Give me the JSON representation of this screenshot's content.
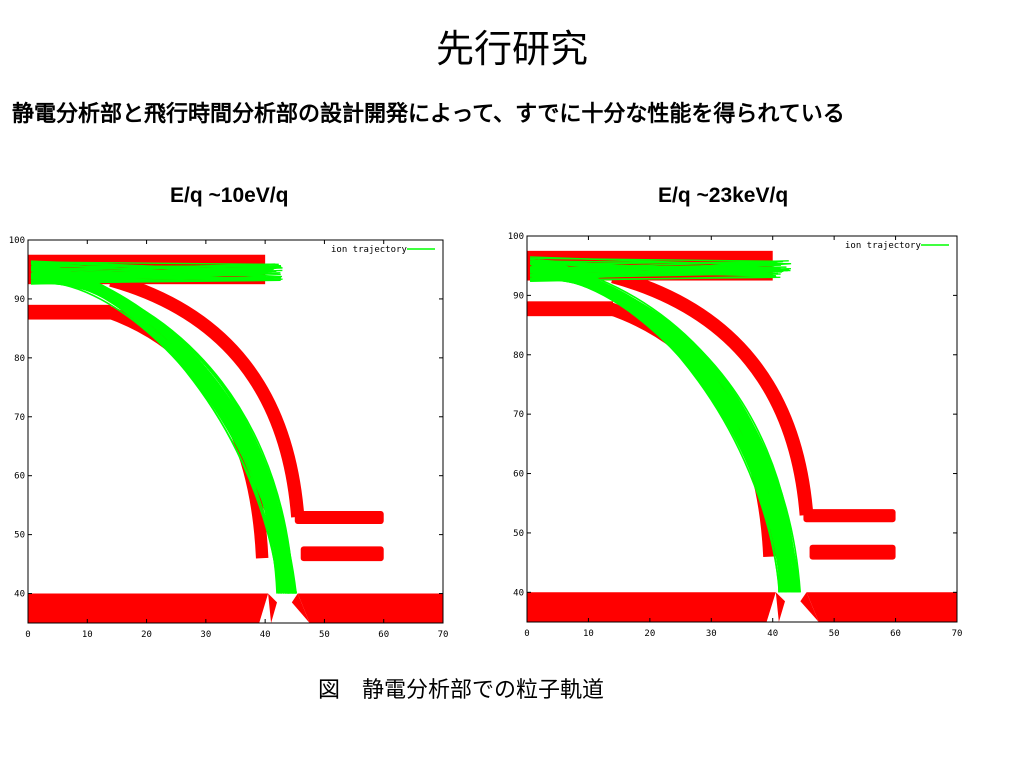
{
  "title": "先行研究",
  "subtitle": "静電分析部と飛行時間分析部の設計開発によって、すでに十分な性能を得られている",
  "caption": "図　静電分析部での粒子軌道",
  "colors": {
    "electrode": "#ff0000",
    "trajectory": "#00ff00",
    "axis": "#000000"
  },
  "chart_data": [
    {
      "type": "line",
      "title": "E/q ~10eV/q",
      "legend": "ion trajectory",
      "legend_position": "top-right",
      "xlim": [
        0,
        70
      ],
      "ylim": [
        35,
        100
      ],
      "xticks": [
        "0",
        "10",
        "20",
        "30",
        "40",
        "50",
        "60",
        "70"
      ],
      "yticks": [
        "40",
        "50",
        "60",
        "70",
        "80",
        "90",
        "100"
      ],
      "beam_focus_x": 44,
      "beam_exit_y": 40
    },
    {
      "type": "line",
      "title": "E/q ~23keV/q",
      "legend": "ion trajectory",
      "legend_position": "top-right",
      "xlim": [
        0,
        70
      ],
      "ylim": [
        35,
        100
      ],
      "xticks": [
        "0",
        "10",
        "20",
        "30",
        "40",
        "50",
        "60",
        "70"
      ],
      "yticks": [
        "40",
        "50",
        "60",
        "70",
        "80",
        "90",
        "100"
      ],
      "beam_focus_x": 43,
      "beam_exit_y": 40
    }
  ]
}
